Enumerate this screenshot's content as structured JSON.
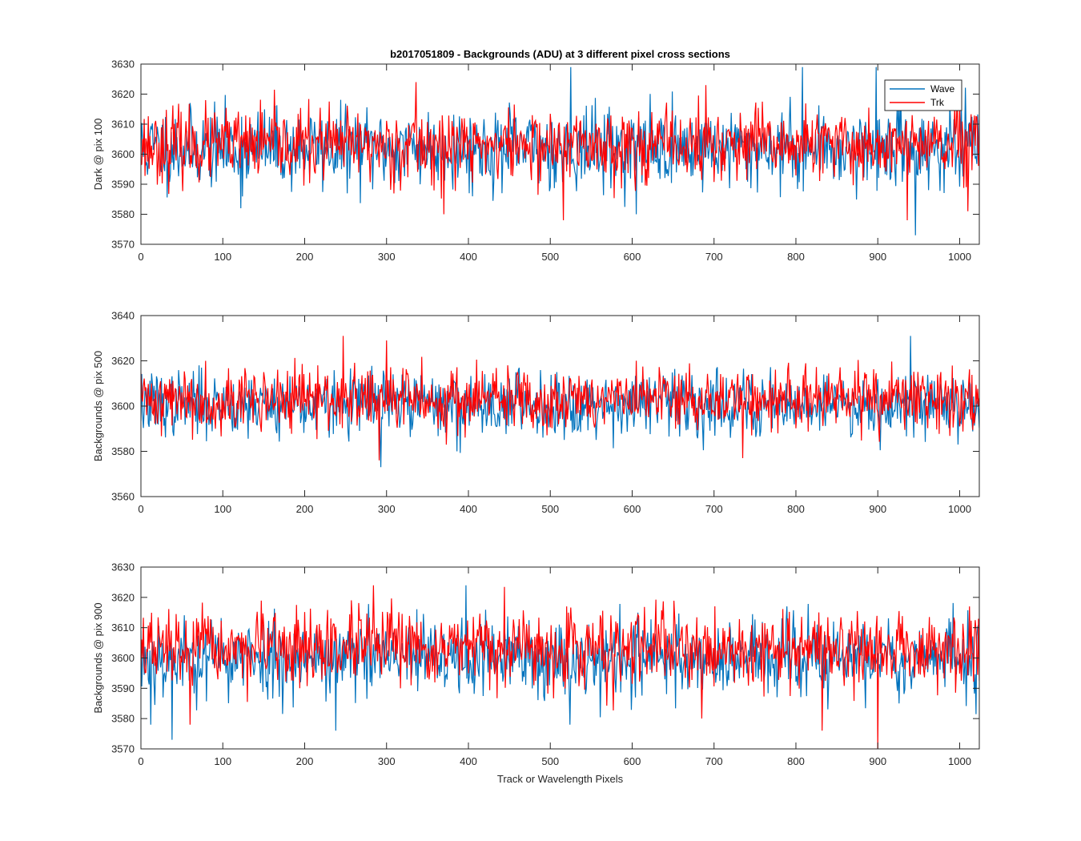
{
  "chart_data": [
    {
      "type": "line",
      "title": "b2017051809 - Backgrounds (ADU) at 3 different pixel cross sections",
      "xlabel": "",
      "ylabel": "Dark @ pix 100",
      "xlim": [
        0,
        1024
      ],
      "ylim": [
        3570,
        3630
      ],
      "xticks": [
        0,
        100,
        200,
        300,
        400,
        500,
        600,
        700,
        800,
        900,
        1000
      ],
      "yticks": [
        3570,
        3580,
        3590,
        3600,
        3610,
        3620,
        3630
      ],
      "legend": "top-right",
      "series": [
        {
          "name": "Wave",
          "color": "#0072BD",
          "mean": 3602,
          "sd": 6.5,
          "seed": 11,
          "extremes": [
            [
              525,
              3629
            ],
            [
              808,
              3629
            ],
            [
              946,
              3573
            ],
            [
              122,
              3582
            ],
            [
              605,
              3580
            ],
            [
              898,
              3629
            ]
          ]
        },
        {
          "name": "Trk",
          "color": "#FF0000",
          "mean": 3603,
          "sd": 6.0,
          "seed": 23,
          "extremes": [
            [
              936,
              3578
            ],
            [
              516,
              3578
            ],
            [
              370,
              3580
            ],
            [
              690,
              3623
            ],
            [
              336,
              3624
            ],
            [
              1010,
              3581
            ]
          ]
        }
      ]
    },
    {
      "type": "line",
      "title": "",
      "xlabel": "",
      "ylabel": "Backgrounds @ pix 500",
      "xlim": [
        0,
        1024
      ],
      "ylim": [
        3560,
        3640
      ],
      "xticks": [
        0,
        100,
        200,
        300,
        400,
        500,
        600,
        700,
        800,
        900,
        1000
      ],
      "yticks": [
        3560,
        3580,
        3600,
        3620,
        3640
      ],
      "legend": "none",
      "series": [
        {
          "name": "",
          "color": "#0072BD",
          "mean": 3601,
          "sd": 7.0,
          "seed": 37,
          "extremes": [
            [
              293,
              3573
            ],
            [
              940,
              3631
            ],
            [
              386,
              3580
            ]
          ]
        },
        {
          "name": "",
          "color": "#FF0000",
          "mean": 3603,
          "sd": 7.0,
          "seed": 41,
          "extremes": [
            [
              247,
              3631
            ],
            [
              300,
              3629
            ],
            [
              735,
              3577
            ],
            [
              291,
              3576
            ]
          ]
        }
      ]
    },
    {
      "type": "line",
      "title": "",
      "xlabel": "Track or Wavelength Pixels",
      "ylabel": "Backgrounds @ pix 900",
      "xlim": [
        0,
        1024
      ],
      "ylim": [
        3570,
        3630
      ],
      "xticks": [
        0,
        100,
        200,
        300,
        400,
        500,
        600,
        700,
        800,
        900,
        1000
      ],
      "yticks": [
        3570,
        3580,
        3590,
        3600,
        3610,
        3620,
        3630
      ],
      "legend": "none",
      "series": [
        {
          "name": "",
          "color": "#0072BD",
          "mean": 3600,
          "sd": 6.5,
          "seed": 53,
          "extremes": [
            [
              38,
              3573
            ],
            [
              238,
              3576
            ],
            [
              397,
              3624
            ],
            [
              524,
              3578
            ],
            [
              12,
              3578
            ]
          ]
        },
        {
          "name": "",
          "color": "#FF0000",
          "mean": 3603,
          "sd": 6.0,
          "seed": 67,
          "extremes": [
            [
              900,
              3570
            ],
            [
              284,
              3624
            ],
            [
              832,
              3576
            ],
            [
              60,
              3578
            ],
            [
              685,
              3580
            ]
          ]
        }
      ]
    }
  ]
}
